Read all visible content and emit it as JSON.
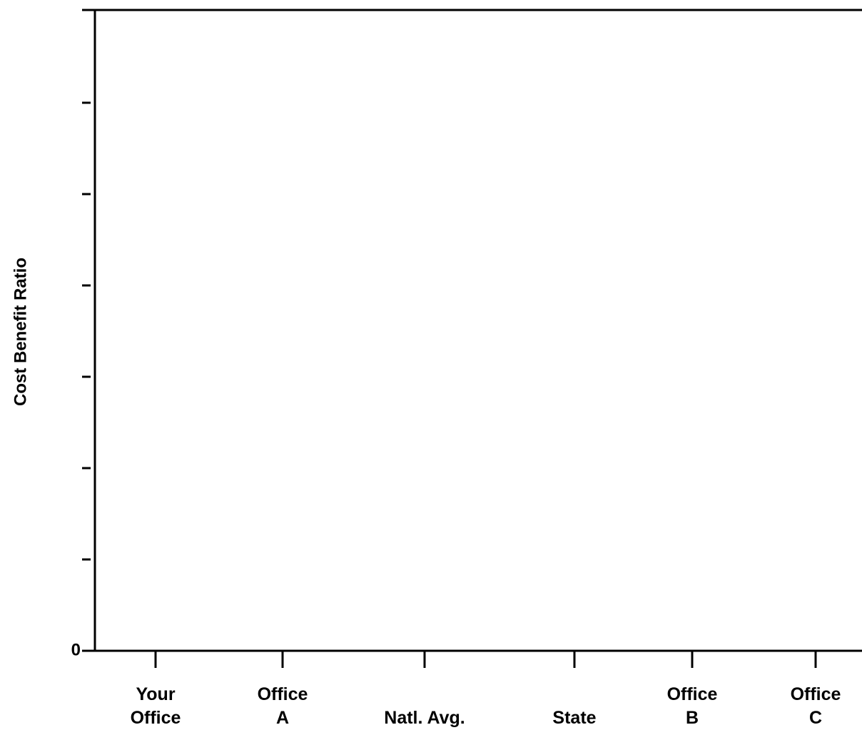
{
  "chart_data": {
    "type": "bar",
    "y_label": "Cost Benefit Ratio",
    "categories": [
      "Your\nOffice",
      "Office\nA",
      "Natl. Avg.",
      "State",
      "Office\nB",
      "Office\nC"
    ],
    "ylim": [
      0,
      7
    ],
    "yticks": [
      0
    ],
    "minor_yticks": [
      1,
      2,
      3,
      4,
      5,
      6
    ],
    "color": "#000000"
  }
}
